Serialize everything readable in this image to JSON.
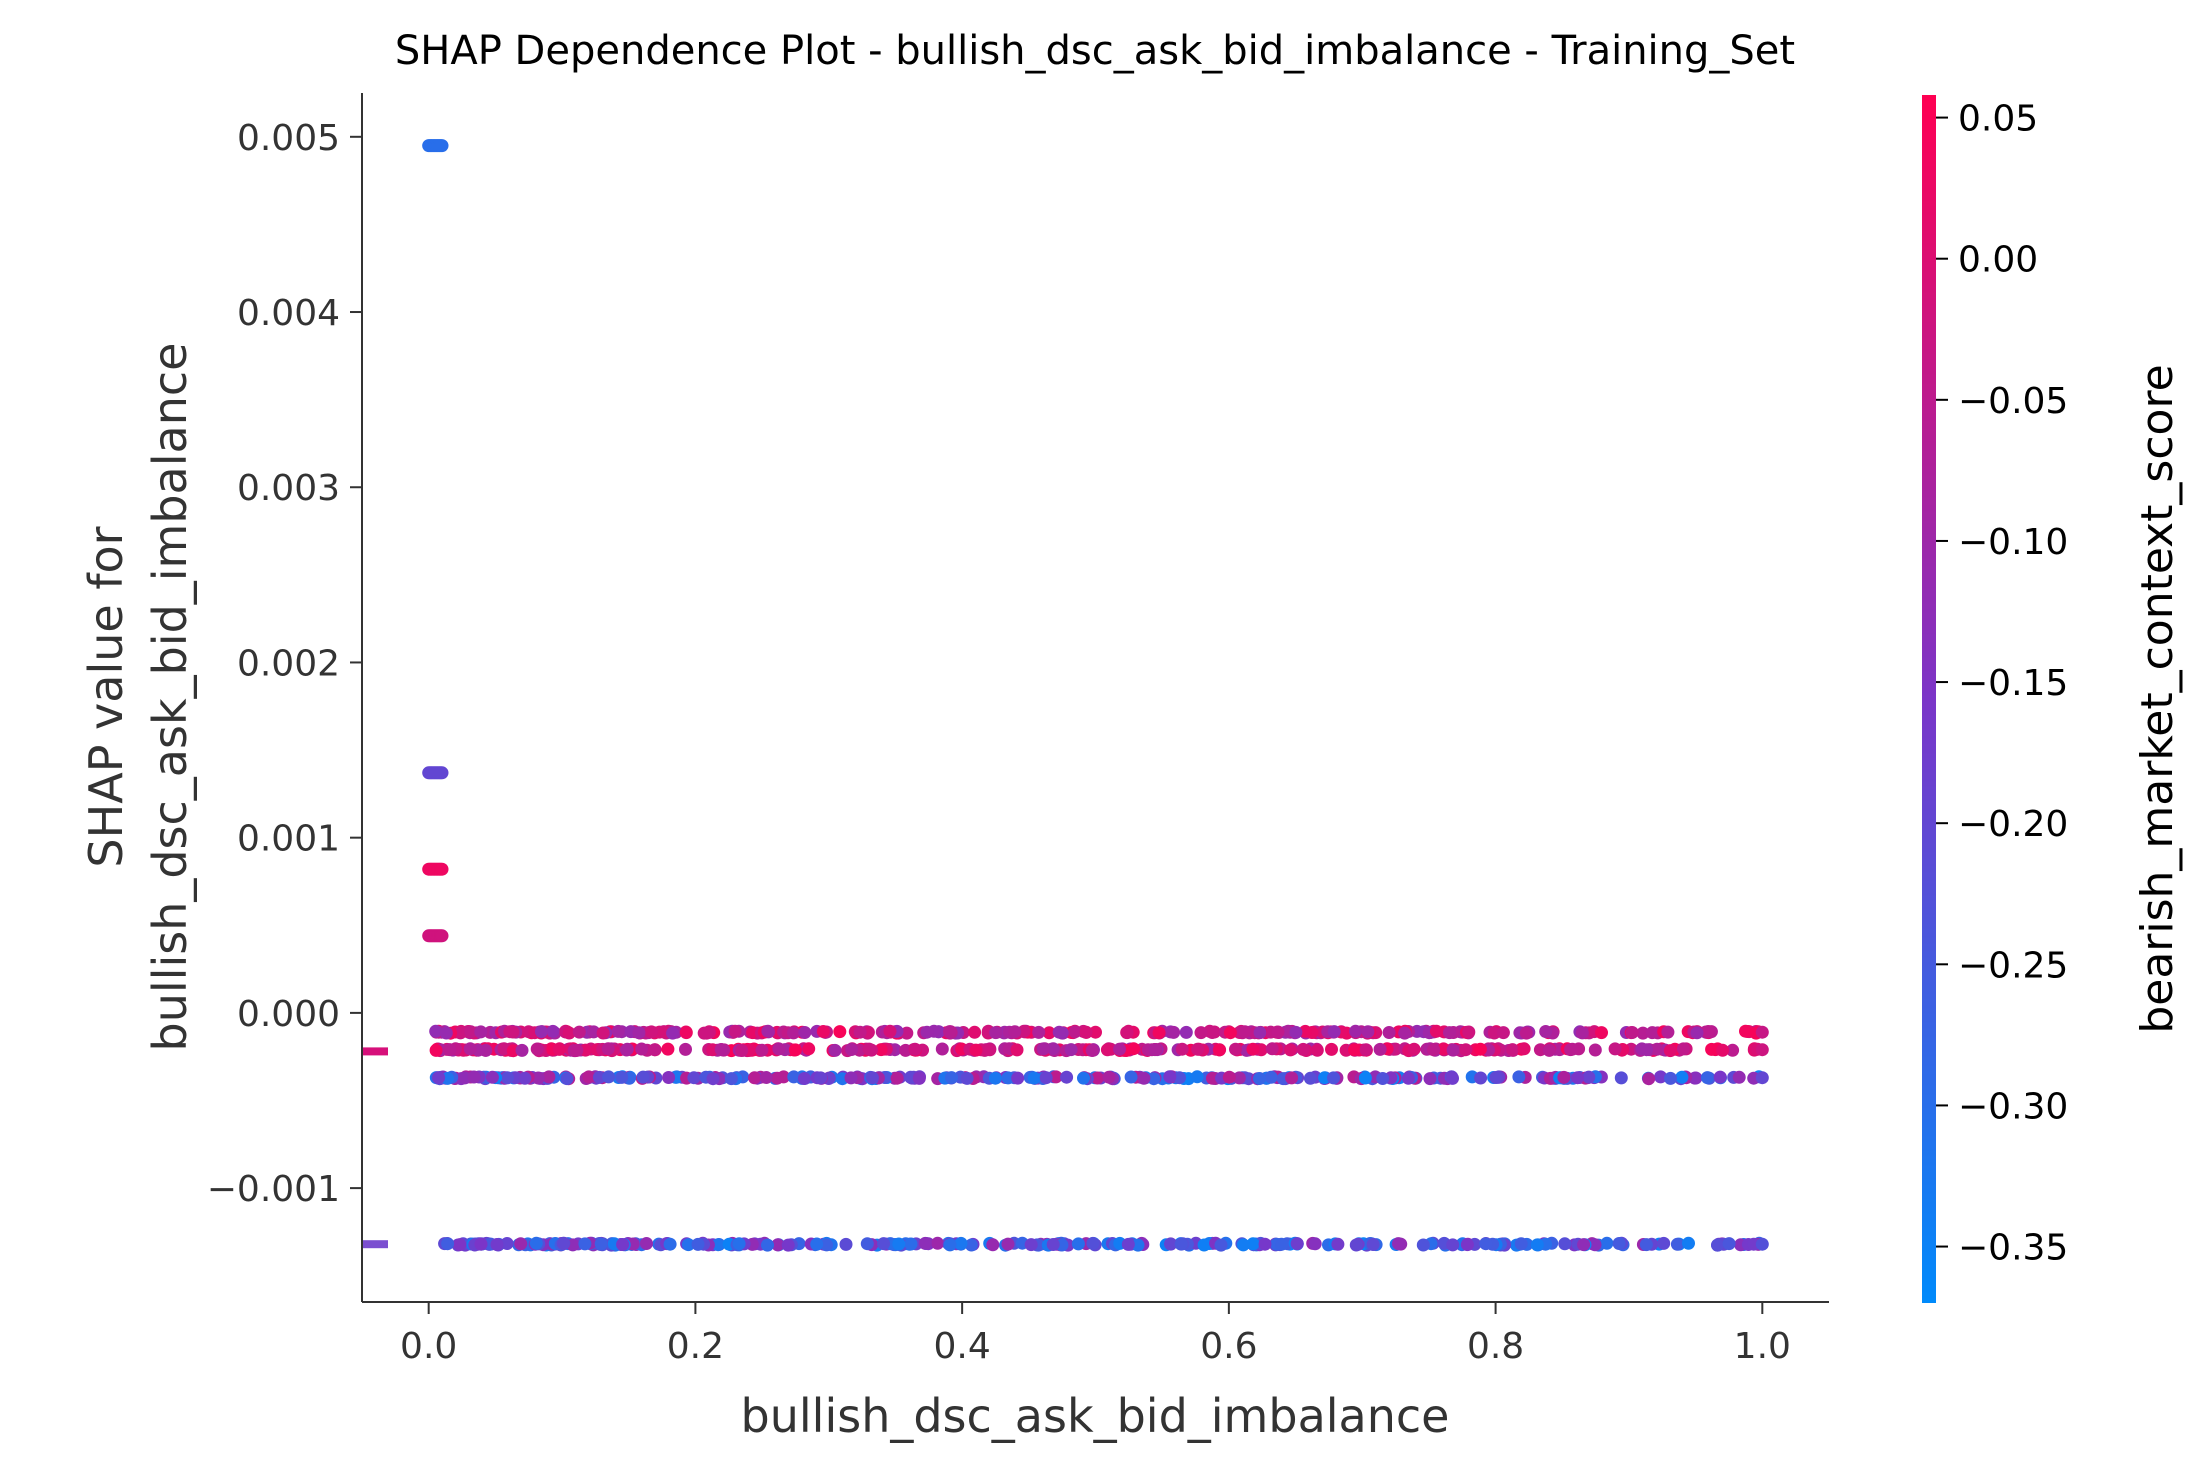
{
  "chart_data": {
    "type": "scatter",
    "title": "SHAP Dependence Plot - bullish_dsc_ask_bid_imbalance - Training_Set",
    "xlabel": "bullish_dsc_ask_bid_imbalance",
    "ylabel_line1": "SHAP value for",
    "ylabel_line2": "bullish_dsc_ask_bid_imbalance",
    "xlim": [
      -0.05,
      1.05
    ],
    "ylim": [
      -0.00165,
      0.00525
    ],
    "x_ticks": [
      0.0,
      0.2,
      0.4,
      0.6,
      0.8,
      1.0
    ],
    "x_tick_labels": [
      "0.0",
      "0.2",
      "0.4",
      "0.6",
      "0.8",
      "1.0"
    ],
    "y_ticks": [
      -0.001,
      0.0,
      0.001,
      0.002,
      0.003,
      0.004,
      0.005
    ],
    "y_tick_labels": [
      "−0.001",
      "0.000",
      "0.001",
      "0.002",
      "0.003",
      "0.004",
      "0.005"
    ],
    "grid": false,
    "colorbar": {
      "label": "bearish_market_context_score",
      "range": [
        -0.37,
        0.058
      ],
      "ticks": [
        0.05,
        0.0,
        -0.05,
        -0.1,
        -0.15,
        -0.2,
        -0.25,
        -0.3,
        -0.35
      ],
      "tick_labels": [
        "0.05",
        "0.00",
        "−0.05",
        "−0.10",
        "−0.15",
        "−0.20",
        "−0.25",
        "−0.30",
        "−0.35"
      ],
      "color_low": "#008afb",
      "color_mid": "#7b35c8",
      "color_high": "#ff0052"
    },
    "clusters": [
      {
        "x": [
          0.0,
          0.01
        ],
        "y": 0.00495,
        "color_value": -0.3
      },
      {
        "x": [
          0.0,
          0.01
        ],
        "y": 0.00137,
        "color_value": -0.2
      },
      {
        "x": [
          0.0,
          0.01
        ],
        "y": 0.00082,
        "color_value": 0.03
      },
      {
        "x": [
          0.0,
          0.01
        ],
        "y": 0.00044,
        "color_value": -0.02
      }
    ],
    "bands": [
      {
        "y": -0.00011,
        "x_range": [
          0.005,
          1.0
        ],
        "color_range": [
          -0.12,
          0.05
        ]
      },
      {
        "y": -0.00021,
        "x_range": [
          0.005,
          1.0
        ],
        "color_range": [
          -0.1,
          0.05
        ]
      },
      {
        "y": -0.00037,
        "x_range": [
          0.005,
          1.0
        ],
        "color_range": [
          -0.35,
          -0.05
        ]
      },
      {
        "y": -0.00132,
        "x_range": [
          0.005,
          1.0
        ],
        "color_range": [
          -0.35,
          -0.1
        ]
      }
    ],
    "marginal_markers": [
      {
        "y": -0.00022,
        "color": "#d6107a"
      },
      {
        "y": -0.00132,
        "color": "#7b4fd0"
      }
    ]
  }
}
